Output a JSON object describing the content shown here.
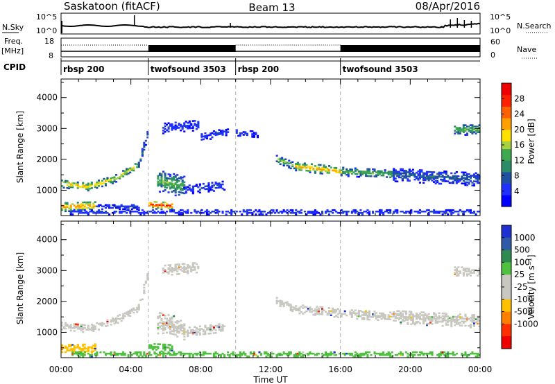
{
  "header": {
    "radar": "Saskatoon (fitACF)",
    "beam": "Beam 13",
    "date": "08/Apr/2016"
  },
  "noise_panel": {
    "left_label": "N.Sky",
    "right_label": "N.Search",
    "ticks": [
      "10^5",
      "10^0"
    ]
  },
  "freq_panel": {
    "left_label_1": "Freq.",
    "left_label_2": "[MHz]",
    "left_ticks": [
      "18",
      "8"
    ],
    "right_label": "Nave",
    "right_ticks": [
      "60",
      "0"
    ]
  },
  "cpid_panel": {
    "label": "CPID",
    "segments": [
      {
        "name": "rbsp 200",
        "start_h": 0,
        "end_h": 5
      },
      {
        "name": "twofsound 3503",
        "start_h": 5,
        "end_h": 10
      },
      {
        "name": "rbsp 200",
        "start_h": 10,
        "end_h": 16
      },
      {
        "name": "twofsound 3503",
        "start_h": 16,
        "end_h": 24
      }
    ]
  },
  "colors": {
    "power": [
      "#0000ff",
      "#2030ff",
      "#2050a0",
      "#2c8c68",
      "#3fa850",
      "#a8d040",
      "#ffe000",
      "#ffa000",
      "#ff6000",
      "#ff2000",
      "#ee0000"
    ],
    "velocity": [
      "#2030d0",
      "#2e5aa8",
      "#2e8a50",
      "#50c040",
      "#c8c8c0",
      "#c8c8c0",
      "#ffc000",
      "#ff8000",
      "#ff3000",
      "#ee0000"
    ],
    "ground": "#c8c8c0"
  },
  "chart_data": [
    {
      "type": "heatmap",
      "name": "power",
      "ylabel": "Slant Range [km]",
      "ylim": [
        180,
        4600
      ],
      "xlim": [
        0,
        24
      ],
      "x_ticks": [
        "00:00",
        "04:00",
        "08:00",
        "12:00",
        "16:00",
        "20:00",
        "00:00"
      ],
      "y_ticks": [
        1000,
        2000,
        3000,
        4000
      ],
      "colorbar": {
        "label": "Power [dB]",
        "range": [
          0,
          32
        ],
        "ticks": [
          4,
          8,
          12,
          16,
          20,
          24,
          28
        ]
      },
      "features": [
        {
          "h0": 0.0,
          "h1": 1.5,
          "r0": 1200,
          "r1": 1100,
          "w": 250,
          "p": 22
        },
        {
          "h0": 1.5,
          "h1": 3.0,
          "r0": 1100,
          "r1": 1350,
          "w": 250,
          "p": 20
        },
        {
          "h0": 3.0,
          "h1": 4.4,
          "r0": 1350,
          "r1": 1800,
          "w": 250,
          "p": 18
        },
        {
          "h0": 4.4,
          "h1": 4.9,
          "r0": 1800,
          "r1": 2800,
          "w": 300,
          "p": 10
        },
        {
          "h0": 0.0,
          "h1": 2.0,
          "r0": 450,
          "r1": 480,
          "w": 300,
          "p": 24
        },
        {
          "h0": 2.0,
          "h1": 4.5,
          "r0": 460,
          "r1": 460,
          "w": 180,
          "p": 6
        },
        {
          "h0": 5.0,
          "h1": 6.3,
          "r0": 520,
          "r1": 480,
          "w": 260,
          "p": 28
        },
        {
          "h0": 5.5,
          "h1": 7.0,
          "r0": 1300,
          "r1": 1100,
          "w": 700,
          "p": 14
        },
        {
          "h0": 7.0,
          "h1": 9.3,
          "r0": 1000,
          "r1": 1150,
          "w": 300,
          "p": 6
        },
        {
          "h0": 5.8,
          "h1": 7.8,
          "r0": 3000,
          "r1": 3100,
          "w": 350,
          "p": 5
        },
        {
          "h0": 8.0,
          "h1": 9.5,
          "r0": 2700,
          "r1": 2900,
          "w": 250,
          "p": 5
        },
        {
          "h0": 10.0,
          "h1": 11.2,
          "r0": 2850,
          "r1": 2800,
          "w": 200,
          "p": 5
        },
        {
          "h0": 12.3,
          "h1": 13.4,
          "r0": 2000,
          "r1": 1750,
          "w": 250,
          "p": 16
        },
        {
          "h0": 13.4,
          "h1": 16.0,
          "r0": 1750,
          "r1": 1600,
          "w": 280,
          "p": 22
        },
        {
          "h0": 16.0,
          "h1": 19.0,
          "r0": 1600,
          "r1": 1500,
          "w": 300,
          "p": 14
        },
        {
          "h0": 19.0,
          "h1": 24.0,
          "r0": 1500,
          "r1": 1350,
          "w": 450,
          "p": 8
        },
        {
          "h0": 22.5,
          "h1": 24.0,
          "r0": 2950,
          "r1": 2950,
          "w": 350,
          "p": 14
        },
        {
          "h0": 0.5,
          "h1": 24.0,
          "r0": 280,
          "r1": 280,
          "w": 150,
          "p": 6
        }
      ]
    },
    {
      "type": "heatmap",
      "name": "velocity",
      "ylabel": "Slant Range [km]",
      "xlabel": "Time UT",
      "ylim": [
        180,
        4600
      ],
      "xlim": [
        0,
        24
      ],
      "x_ticks": [
        "00:00",
        "04:00",
        "08:00",
        "12:00",
        "16:00",
        "20:00",
        "00:00"
      ],
      "y_ticks": [
        1000,
        2000,
        3000,
        4000
      ],
      "colorbar": {
        "label": "Velocity [m s⁻¹]",
        "ticks": [
          "1000",
          "500",
          "100",
          "25",
          "-25",
          "-100",
          "-500",
          "-1000"
        ]
      },
      "features": [
        {
          "h0": 0.0,
          "h1": 1.5,
          "r0": 1200,
          "r1": 1100,
          "w": 250,
          "v": 4
        },
        {
          "h0": 1.5,
          "h1": 3.0,
          "r0": 1100,
          "r1": 1350,
          "w": 250,
          "v": 4
        },
        {
          "h0": 3.0,
          "h1": 4.4,
          "r0": 1350,
          "r1": 1800,
          "w": 250,
          "v": 4
        },
        {
          "h0": 4.4,
          "h1": 4.9,
          "r0": 1800,
          "r1": 2800,
          "w": 300,
          "v": 4
        },
        {
          "h0": 0.0,
          "h1": 2.0,
          "r0": 450,
          "r1": 480,
          "w": 300,
          "v": 6
        },
        {
          "h0": 5.0,
          "h1": 6.3,
          "r0": 520,
          "r1": 480,
          "w": 260,
          "v": 3
        },
        {
          "h0": 5.5,
          "h1": 7.0,
          "r0": 1300,
          "r1": 1100,
          "w": 700,
          "v": 4
        },
        {
          "h0": 7.0,
          "h1": 9.3,
          "r0": 1000,
          "r1": 1150,
          "w": 300,
          "v": 4
        },
        {
          "h0": 5.8,
          "h1": 7.8,
          "r0": 3000,
          "r1": 3100,
          "w": 350,
          "v": 4
        },
        {
          "h0": 12.3,
          "h1": 13.4,
          "r0": 2000,
          "r1": 1750,
          "w": 250,
          "v": 4
        },
        {
          "h0": 13.4,
          "h1": 16.0,
          "r0": 1750,
          "r1": 1600,
          "w": 280,
          "v": 4
        },
        {
          "h0": 16.0,
          "h1": 19.0,
          "r0": 1600,
          "r1": 1500,
          "w": 300,
          "v": 4
        },
        {
          "h0": 19.0,
          "h1": 24.0,
          "r0": 1500,
          "r1": 1350,
          "w": 450,
          "v": 4
        },
        {
          "h0": 22.5,
          "h1": 24.0,
          "r0": 2950,
          "r1": 2950,
          "w": 350,
          "v": 4
        },
        {
          "h0": 0.5,
          "h1": 24.0,
          "r0": 280,
          "r1": 280,
          "w": 150,
          "v": 3
        }
      ]
    }
  ]
}
